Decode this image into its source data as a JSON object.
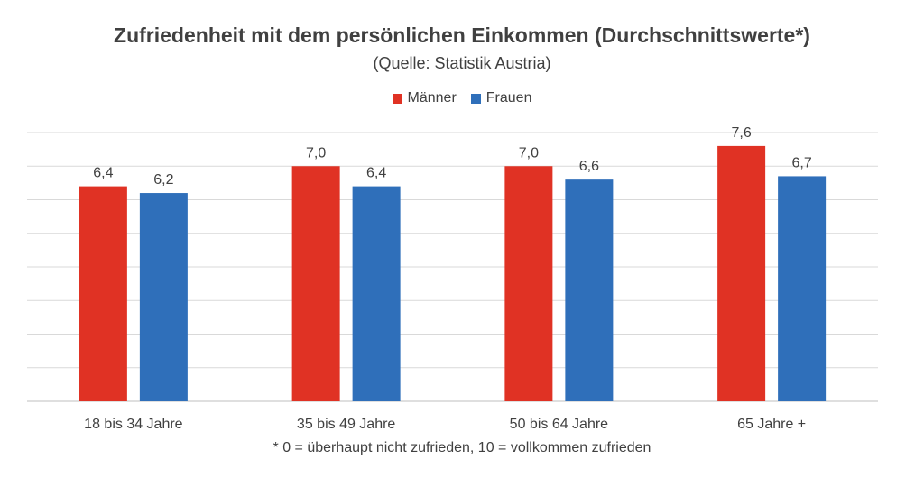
{
  "chart_data": {
    "type": "bar",
    "title": "Zufriedenheit mit dem persönlichen Einkommen (Durchschnittswerte*)",
    "subtitle": "(Quelle: Statistik Austria)",
    "footnote": "* 0 = überhaupt nicht zufrieden, 10 = vollkommen zufrieden",
    "categories": [
      "18 bis 34 Jahre",
      "35 bis 49 Jahre",
      "50 bis 64 Jahre",
      "65 Jahre +"
    ],
    "series": [
      {
        "name": "Männer",
        "color": "#e03224",
        "values": [
          6.4,
          7.0,
          7.0,
          7.6
        ],
        "labels": [
          "6,4",
          "7,0",
          "7,0",
          "7,6"
        ]
      },
      {
        "name": "Frauen",
        "color": "#2f6fba",
        "values": [
          6.2,
          6.4,
          6.6,
          6.7
        ],
        "labels": [
          "6,2",
          "6,4",
          "6,6",
          "6,7"
        ]
      }
    ],
    "ylim": [
      0,
      8
    ],
    "grid": true,
    "legend": "top-center",
    "xlabel": "",
    "ylabel": ""
  }
}
